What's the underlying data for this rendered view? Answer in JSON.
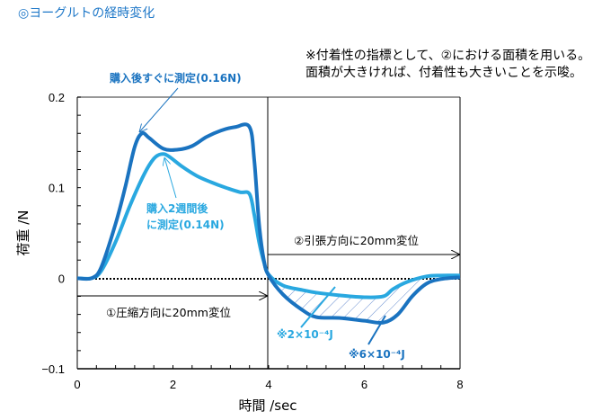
{
  "page": {
    "title": "◎ヨーグルトの経時変化",
    "note_line1": "※付着性の指標として、②における面積を用いる。",
    "note_line2": "面積が大きければ、付着性も大きいことを示唆。"
  },
  "colors": {
    "fresh": "#1a73c0",
    "aged": "#29a8e0",
    "title": "#1f78c8",
    "axis": "#000000"
  },
  "chart_data": {
    "type": "line",
    "title": "",
    "xlabel": "時間 /sec",
    "ylabel": "荷重 /N",
    "xlim": [
      0,
      8
    ],
    "ylim": [
      -0.1,
      0.2
    ],
    "xticks": [
      "0",
      "2",
      "4",
      "6",
      "8"
    ],
    "yticks": [
      "-0.1",
      "0",
      "0.1",
      "0.2"
    ],
    "grid": false,
    "series": [
      {
        "name": "購入後すぐに測定(0.16N)",
        "x": [
          0,
          0.3,
          0.5,
          0.8,
          1.0,
          1.2,
          1.35,
          1.5,
          1.8,
          2.1,
          2.4,
          2.7,
          3.0,
          3.3,
          3.6,
          3.7,
          3.8,
          3.9,
          4.0,
          4.3,
          4.7,
          5.0,
          5.5,
          6.0,
          6.4,
          6.7,
          7.0,
          7.3,
          7.6,
          8.0
        ],
        "y": [
          0,
          0,
          0.012,
          0.06,
          0.1,
          0.145,
          0.16,
          0.155,
          0.143,
          0.142,
          0.146,
          0.156,
          0.163,
          0.167,
          0.167,
          0.13,
          0.06,
          0.02,
          0.003,
          -0.018,
          -0.035,
          -0.043,
          -0.044,
          -0.047,
          -0.049,
          -0.04,
          -0.02,
          -0.006,
          -0.001,
          0.001
        ]
      },
      {
        "name": "購入2週間後に測定(0.14N)",
        "x": [
          0,
          0.3,
          0.5,
          0.8,
          1.1,
          1.4,
          1.6,
          1.75,
          1.9,
          2.2,
          2.5,
          2.8,
          3.1,
          3.4,
          3.6,
          3.7,
          3.8,
          3.9,
          4.0,
          4.3,
          4.7,
          5.0,
          5.5,
          6.0,
          6.4,
          6.6,
          6.9,
          7.3,
          7.6,
          8.0
        ],
        "y": [
          0,
          0,
          0.008,
          0.04,
          0.08,
          0.115,
          0.132,
          0.137,
          0.135,
          0.123,
          0.113,
          0.106,
          0.1,
          0.095,
          0.093,
          0.07,
          0.04,
          0.018,
          0.004,
          -0.008,
          -0.013,
          -0.016,
          -0.019,
          -0.021,
          -0.02,
          -0.012,
          -0.004,
          0.002,
          0.003,
          0.003
        ]
      }
    ],
    "annotations": [
      {
        "text": "購入後すぐに測定(0.16N)",
        "series": 0
      },
      {
        "text": "購入2週間後",
        "text2": "に測定(0.14N)",
        "series": 1
      },
      {
        "text": "①圧縮方向に20mm変位"
      },
      {
        "text": "②引張方向に20mm変位"
      },
      {
        "text": "※2×10⁻⁴J",
        "series": 1
      },
      {
        "text": "※6×10⁻⁴J",
        "series": 0
      }
    ]
  }
}
